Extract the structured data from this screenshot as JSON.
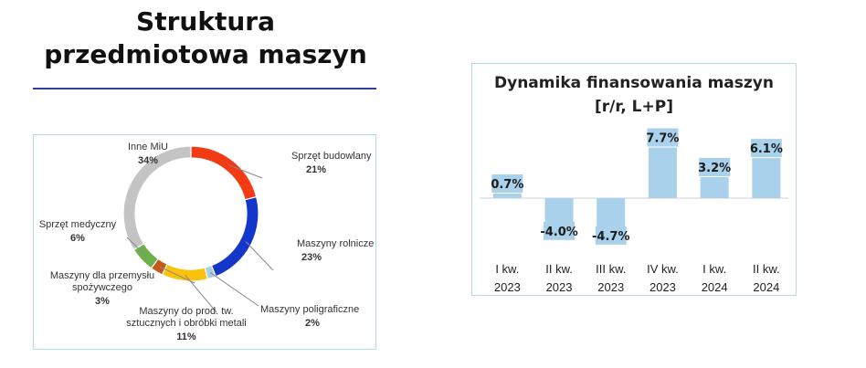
{
  "page_title": {
    "line1": "Struktura",
    "line2": "przedmiotowa maszyn"
  },
  "chart_data": [
    {
      "type": "pie",
      "variant": "donut",
      "start": "top, clockwise",
      "slices": [
        {
          "label": "Sprzęt budowlany",
          "value": 21,
          "pct": "21%",
          "color": "#f23a14"
        },
        {
          "label": "Maszyny rolnicze",
          "value": 23,
          "pct": "23%",
          "color": "#1537c9"
        },
        {
          "label": "Maszyny poligraficzne",
          "value": 2,
          "pct": "2%",
          "color": "#a8cde6"
        },
        {
          "label_lines": [
            "Maszyny do prod. tw.",
            "sztucznych i obróbki metali"
          ],
          "value": 11,
          "pct": "11%",
          "color": "#fbc20c"
        },
        {
          "label_lines": [
            "Maszyny dla przemysłu",
            "spożywczego"
          ],
          "value": 3,
          "pct": "3%",
          "color": "#c45a16"
        },
        {
          "label": "Sprzęt medyczny",
          "value": 6,
          "pct": "6%",
          "color": "#6ab04c"
        },
        {
          "label": "Inne MiU",
          "value": 34,
          "pct": "34%",
          "color": "#c4c4c4"
        }
      ]
    },
    {
      "type": "bar",
      "title_lines": [
        "Dynamika finansowania maszyn",
        "[r/r, L+P]"
      ],
      "color": "#a9d1ec",
      "categories": [
        [
          "I kw.",
          "2023"
        ],
        [
          "II kw.",
          "2023"
        ],
        [
          "III kw.",
          "2023"
        ],
        [
          "IV kw.",
          "2023"
        ],
        [
          "I kw.",
          "2024"
        ],
        [
          "II kw.",
          "2024"
        ]
      ],
      "values": [
        0.7,
        -4.0,
        -4.7,
        7.7,
        3.2,
        6.1
      ],
      "value_labels": [
        "0.7%",
        "-4.0%",
        "-4.7%",
        "7.7%",
        "3.2%",
        "6.1%"
      ],
      "ylim": [
        -5,
        8
      ]
    }
  ]
}
